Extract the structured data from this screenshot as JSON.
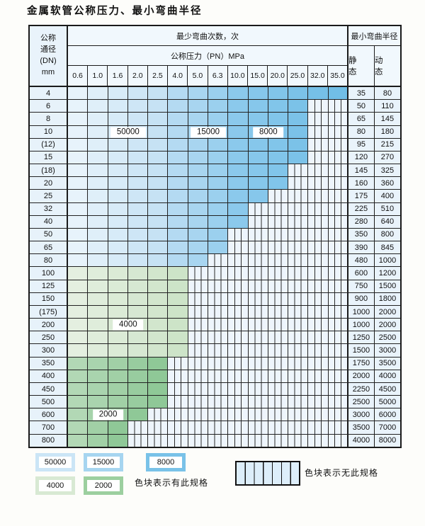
{
  "title": "金属软管公称压力、最小弯曲半径",
  "table": {
    "header": {
      "dn_lines": [
        "公称",
        "通径",
        "(DN)",
        "mm"
      ],
      "bend_times": "最少弯曲次数，次",
      "pressure": "公称压力（PN）MPa",
      "pressure_columns": [
        "0.6",
        "1.0",
        "1.6",
        "2.0",
        "2.5",
        "4.0",
        "5.0",
        "6.3",
        "10.0",
        "15.0",
        "20.0",
        "25.0",
        "32.0",
        "35.0"
      ],
      "radius": "最小弯曲半径",
      "static": "静 态",
      "dynamic": "动 态"
    },
    "cycle_regions": {
      "blue": [
        {
          "cycles": "50000",
          "col_start": 0,
          "col_end": 4,
          "color_from": "#e7f3fb",
          "color_to": "#c6e2f4"
        },
        {
          "cycles": "15000",
          "col_start": 5,
          "col_end": 7,
          "color_from": "#b4daf2",
          "color_to": "#9bd0ee"
        },
        {
          "cycles": "8000",
          "col_start": 8,
          "col_end": 13,
          "color_from": "#8bc9ec",
          "color_to": "#71bee6"
        }
      ],
      "green": {
        "4000": {
          "color_from": "#e4efe0",
          "color_to": "#cde4c8"
        },
        "2000": {
          "color_from": "#b2d8b5",
          "color_to": "#8fc897"
        }
      }
    },
    "rows": [
      {
        "dn": "4",
        "palette": "blue",
        "last_col": 13,
        "static": "35",
        "dynamic": "80"
      },
      {
        "dn": "6",
        "palette": "blue",
        "last_col": 11,
        "static": "50",
        "dynamic": "110"
      },
      {
        "dn": "8",
        "palette": "blue",
        "last_col": 11,
        "static": "65",
        "dynamic": "145"
      },
      {
        "dn": "10",
        "palette": "blue",
        "last_col": 11,
        "static": "80",
        "dynamic": "180"
      },
      {
        "dn": "(12)",
        "palette": "blue",
        "last_col": 11,
        "static": "95",
        "dynamic": "215"
      },
      {
        "dn": "15",
        "palette": "blue",
        "last_col": 11,
        "static": "120",
        "dynamic": "270"
      },
      {
        "dn": "(18)",
        "palette": "blue",
        "last_col": 10,
        "static": "145",
        "dynamic": "325"
      },
      {
        "dn": "20",
        "palette": "blue",
        "last_col": 10,
        "static": "160",
        "dynamic": "360"
      },
      {
        "dn": "25",
        "palette": "blue",
        "last_col": 9,
        "static": "175",
        "dynamic": "400"
      },
      {
        "dn": "32",
        "palette": "blue",
        "last_col": 8,
        "static": "225",
        "dynamic": "510"
      },
      {
        "dn": "40",
        "palette": "blue",
        "last_col": 8,
        "static": "280",
        "dynamic": "640"
      },
      {
        "dn": "50",
        "palette": "blue",
        "last_col": 7,
        "static": "350",
        "dynamic": "800"
      },
      {
        "dn": "65",
        "palette": "blue",
        "last_col": 7,
        "static": "390",
        "dynamic": "845"
      },
      {
        "dn": "80",
        "palette": "blue",
        "last_col": 6,
        "static": "480",
        "dynamic": "1000"
      },
      {
        "dn": "100",
        "palette": "green-4000",
        "last_col": 5,
        "static": "600",
        "dynamic": "1200"
      },
      {
        "dn": "125",
        "palette": "green-4000",
        "last_col": 5,
        "static": "750",
        "dynamic": "1500"
      },
      {
        "dn": "150",
        "palette": "green-4000",
        "last_col": 5,
        "static": "900",
        "dynamic": "1800"
      },
      {
        "dn": "(175)",
        "palette": "green-4000",
        "last_col": 5,
        "static": "1000",
        "dynamic": "2000"
      },
      {
        "dn": "200",
        "palette": "green-4000",
        "last_col": 5,
        "static": "1000",
        "dynamic": "2000"
      },
      {
        "dn": "250",
        "palette": "green-4000",
        "last_col": 5,
        "static": "1250",
        "dynamic": "2500"
      },
      {
        "dn": "300",
        "palette": "green-4000",
        "last_col": 5,
        "static": "1500",
        "dynamic": "3000"
      },
      {
        "dn": "350",
        "palette": "green-2000",
        "last_col": 4,
        "static": "1750",
        "dynamic": "3500"
      },
      {
        "dn": "400",
        "palette": "green-2000",
        "last_col": 4,
        "static": "2000",
        "dynamic": "4000"
      },
      {
        "dn": "450",
        "palette": "green-2000",
        "last_col": 4,
        "static": "2250",
        "dynamic": "4500"
      },
      {
        "dn": "500",
        "palette": "green-2000",
        "last_col": 4,
        "static": "2500",
        "dynamic": "5000"
      },
      {
        "dn": "600",
        "palette": "green-2000",
        "last_col": 3,
        "static": "3000",
        "dynamic": "6000"
      },
      {
        "dn": "700",
        "palette": "green-2000",
        "last_col": 2,
        "static": "3500",
        "dynamic": "7000"
      },
      {
        "dn": "800",
        "palette": "green-2000",
        "last_col": 2,
        "static": "4000",
        "dynamic": "8000"
      }
    ],
    "overlay_labels": [
      {
        "text": "50000",
        "row_index": 3,
        "edge_col": 3
      },
      {
        "text": "15000",
        "row_index": 3,
        "edge_col": 7
      },
      {
        "text": "8000",
        "row_index": 3,
        "edge_col": 10
      },
      {
        "text": "4000",
        "row_index": 18,
        "edge_col": 3
      },
      {
        "text": "2000",
        "row_index": 25,
        "edge_col": 2
      }
    ]
  },
  "legend": {
    "items": [
      {
        "value": "50000",
        "color": "#cbe5f6"
      },
      {
        "value": "15000",
        "color": "#a6d5f0"
      },
      {
        "value": "8000",
        "color": "#79c2e8"
      },
      {
        "value": "4000",
        "color": "#d8e9d3"
      },
      {
        "value": "2000",
        "color": "#9ccf9f"
      }
    ],
    "has_spec_text": "色块表示有此规格",
    "no_spec_text": "色块表示无此规格"
  }
}
